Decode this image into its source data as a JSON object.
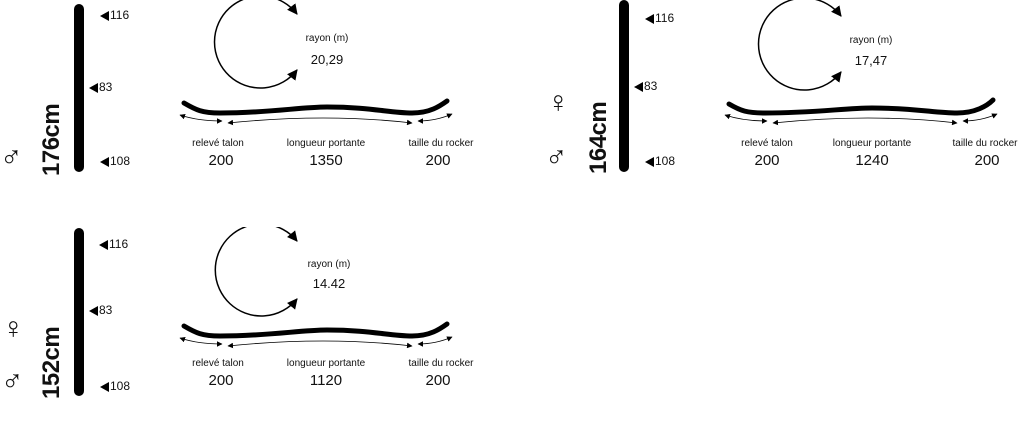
{
  "panels": [
    {
      "size": "176cm",
      "symbols": [
        "♂"
      ],
      "dims": [
        "116",
        "83",
        "108"
      ],
      "radius_label": "rayon (m)",
      "radius_value": "20,29",
      "labels": [
        "relevé talon",
        "longueur portante",
        "taille du rocker"
      ],
      "values": [
        "200",
        "1350",
        "200"
      ]
    },
    {
      "size": "164cm",
      "symbols": [
        "♀",
        "♂"
      ],
      "dims": [
        "116",
        "83",
        "108"
      ],
      "radius_label": "rayon (m)",
      "radius_value": "17,47",
      "labels": [
        "relevé talon",
        "longueur portante",
        "taille du rocker"
      ],
      "values": [
        "200",
        "1240",
        "200"
      ]
    },
    {
      "size": "152cm",
      "symbols": [
        "♀",
        "♂"
      ],
      "dims": [
        "116",
        "83",
        "108"
      ],
      "radius_label": "rayon (m)",
      "radius_value": "14.42",
      "labels": [
        "relevé talon",
        "longueur portante",
        "taille du rocker"
      ],
      "values": [
        "200",
        "1120",
        "200"
      ]
    }
  ]
}
